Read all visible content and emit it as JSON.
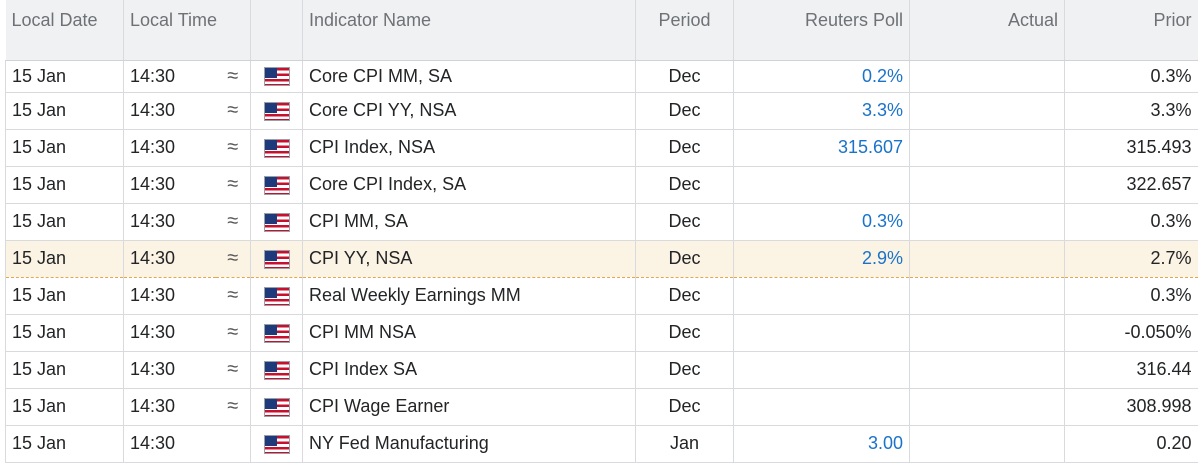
{
  "header": {
    "local_date": "Local Date",
    "local_time": "Local Time",
    "indicator_name": "Indicator Name",
    "period": "Period",
    "reuters_poll": "Reuters Poll",
    "actual": "Actual",
    "prior": "Prior"
  },
  "rows": [
    {
      "date": "15 Jan",
      "time": "14:30",
      "approx": "≈",
      "flag": "us-flag-icon",
      "name": "Core CPI MM, SA",
      "period": "Dec",
      "poll": "0.2%",
      "actual": "",
      "prior": "0.3%"
    },
    {
      "date": "15 Jan",
      "time": "14:30",
      "approx": "≈",
      "flag": "us-flag-icon",
      "name": "Core CPI YY, NSA",
      "period": "Dec",
      "poll": "3.3%",
      "actual": "",
      "prior": "3.3%"
    },
    {
      "date": "15 Jan",
      "time": "14:30",
      "approx": "≈",
      "flag": "us-flag-icon",
      "name": "CPI Index, NSA",
      "period": "Dec",
      "poll": "315.607",
      "actual": "",
      "prior": "315.493"
    },
    {
      "date": "15 Jan",
      "time": "14:30",
      "approx": "≈",
      "flag": "us-flag-icon",
      "name": "Core CPI Index, SA",
      "period": "Dec",
      "poll": "",
      "actual": "",
      "prior": "322.657"
    },
    {
      "date": "15 Jan",
      "time": "14:30",
      "approx": "≈",
      "flag": "us-flag-icon",
      "name": "CPI MM, SA",
      "period": "Dec",
      "poll": "0.3%",
      "actual": "",
      "prior": "0.3%"
    },
    {
      "date": "15 Jan",
      "time": "14:30",
      "approx": "≈",
      "flag": "us-flag-icon",
      "name": "CPI YY, NSA",
      "period": "Dec",
      "poll": "2.9%",
      "actual": "",
      "prior": "2.7%"
    },
    {
      "date": "15 Jan",
      "time": "14:30",
      "approx": "≈",
      "flag": "us-flag-icon",
      "name": "Real Weekly Earnings MM",
      "period": "Dec",
      "poll": "",
      "actual": "",
      "prior": "0.3%"
    },
    {
      "date": "15 Jan",
      "time": "14:30",
      "approx": "≈",
      "flag": "us-flag-icon",
      "name": "CPI MM NSA",
      "period": "Dec",
      "poll": "",
      "actual": "",
      "prior": "-0.050%"
    },
    {
      "date": "15 Jan",
      "time": "14:30",
      "approx": "≈",
      "flag": "us-flag-icon",
      "name": "CPI Index SA",
      "period": "Dec",
      "poll": "",
      "actual": "",
      "prior": "316.44"
    },
    {
      "date": "15 Jan",
      "time": "14:30",
      "approx": "≈",
      "flag": "us-flag-icon",
      "name": "CPI Wage Earner",
      "period": "Dec",
      "poll": "",
      "actual": "",
      "prior": "308.998"
    },
    {
      "date": "15 Jan",
      "time": "14:30",
      "approx": "",
      "flag": "us-flag-icon",
      "name": "NY Fed Manufacturing",
      "period": "Jan",
      "poll": "3.00",
      "actual": "",
      "prior": "0.20"
    }
  ],
  "colors": {
    "poll_text": "#1a73c9",
    "highlight_bg": "#fbf3e4",
    "highlight_border": "#e8a64a"
  }
}
